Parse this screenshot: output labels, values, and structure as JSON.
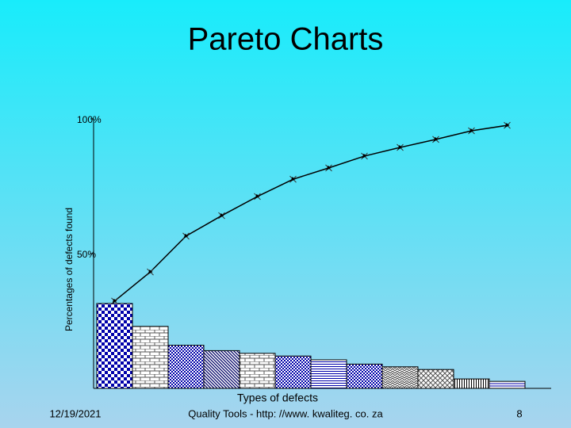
{
  "chart_data": {
    "type": "pareto",
    "title": "Pareto Charts",
    "y_label": "Percentages of defects found",
    "x_label": "Types of defects",
    "ylim": [
      0,
      100
    ],
    "yticks": [
      {
        "value": 50,
        "label": "50%"
      },
      {
        "value": 100,
        "label": "100%"
      }
    ],
    "series": [
      {
        "type": "bar",
        "color": "#0000aa",
        "values": [
          31.5,
          23,
          16,
          14,
          13,
          12,
          10.6,
          9,
          8,
          7,
          3.5,
          2.6
        ]
      },
      {
        "type": "line",
        "color": "#000000",
        "values": [
          32.4,
          43.2,
          56.5,
          64.1,
          71.2,
          77.6,
          81.8,
          86.2,
          89.4,
          92.4,
          95.6,
          97.6
        ]
      }
    ]
  },
  "footer": {
    "date": "12/19/2021",
    "source": "Quality Tools - http: //www. kwaliteg. co. za",
    "page": "8"
  }
}
